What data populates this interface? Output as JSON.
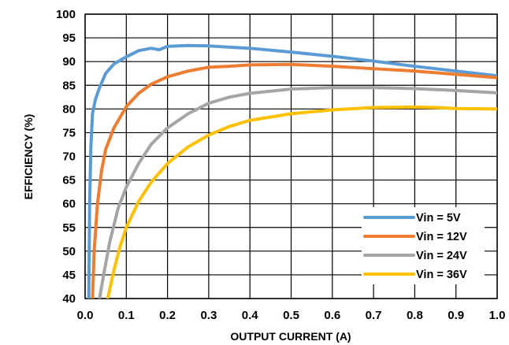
{
  "chart_data": {
    "type": "line",
    "title": "",
    "xlabel": "OUTPUT CURRENT (A)",
    "ylabel": "EFFICIENCY (%)",
    "xlim": [
      0,
      1.0
    ],
    "ylim": [
      40,
      100
    ],
    "xticks": [
      "0.0",
      "0.1",
      "0.2",
      "0.3",
      "0.4",
      "0.5",
      "0.6",
      "0.7",
      "0.8",
      "0.9",
      "1.0"
    ],
    "yticks": [
      "40",
      "45",
      "50",
      "55",
      "60",
      "65",
      "70",
      "75",
      "80",
      "85",
      "90",
      "95",
      "100"
    ],
    "grid": true,
    "legend_position": "bottom-right",
    "series": [
      {
        "name": "Vin = 5V",
        "color": "#5B9BD5",
        "points": [
          [
            0.009,
            40
          ],
          [
            0.011,
            60
          ],
          [
            0.014,
            72
          ],
          [
            0.018,
            79
          ],
          [
            0.025,
            82
          ],
          [
            0.035,
            84.5
          ],
          [
            0.05,
            87.5
          ],
          [
            0.07,
            89.5
          ],
          [
            0.1,
            91
          ],
          [
            0.13,
            92.3
          ],
          [
            0.16,
            92.8
          ],
          [
            0.18,
            92.5
          ],
          [
            0.2,
            93.2
          ],
          [
            0.25,
            93.4
          ],
          [
            0.3,
            93.3
          ],
          [
            0.4,
            92.8
          ],
          [
            0.5,
            92
          ],
          [
            0.6,
            91.1
          ],
          [
            0.7,
            90.1
          ],
          [
            0.8,
            89
          ],
          [
            0.9,
            88
          ],
          [
            1.0,
            87
          ]
        ]
      },
      {
        "name": "Vin = 12V",
        "color": "#ED7D31",
        "points": [
          [
            0.018,
            40
          ],
          [
            0.022,
            50
          ],
          [
            0.03,
            60
          ],
          [
            0.04,
            67
          ],
          [
            0.05,
            71.5
          ],
          [
            0.07,
            76
          ],
          [
            0.1,
            80.5
          ],
          [
            0.13,
            83.3
          ],
          [
            0.16,
            85.2
          ],
          [
            0.2,
            86.8
          ],
          [
            0.25,
            88
          ],
          [
            0.3,
            88.8
          ],
          [
            0.35,
            89
          ],
          [
            0.4,
            89.3
          ],
          [
            0.5,
            89.4
          ],
          [
            0.6,
            89
          ],
          [
            0.7,
            88.5
          ],
          [
            0.8,
            88
          ],
          [
            0.9,
            87.3
          ],
          [
            1.0,
            86.6
          ]
        ]
      },
      {
        "name": "Vin = 24V",
        "color": "#A5A5A5",
        "points": [
          [
            0.035,
            40
          ],
          [
            0.045,
            45
          ],
          [
            0.06,
            52
          ],
          [
            0.08,
            59
          ],
          [
            0.1,
            63.5
          ],
          [
            0.13,
            68.5
          ],
          [
            0.16,
            72.5
          ],
          [
            0.2,
            76
          ],
          [
            0.25,
            79
          ],
          [
            0.3,
            81.2
          ],
          [
            0.35,
            82.5
          ],
          [
            0.4,
            83.3
          ],
          [
            0.5,
            84.2
          ],
          [
            0.6,
            84.5
          ],
          [
            0.7,
            84.5
          ],
          [
            0.8,
            84.3
          ],
          [
            0.9,
            83.9
          ],
          [
            1.0,
            83.4
          ]
        ]
      },
      {
        "name": "Vin = 36V",
        "color": "#FFC000",
        "points": [
          [
            0.055,
            40
          ],
          [
            0.07,
            46
          ],
          [
            0.085,
            51
          ],
          [
            0.1,
            55
          ],
          [
            0.13,
            60.5
          ],
          [
            0.16,
            64.5
          ],
          [
            0.2,
            68.5
          ],
          [
            0.25,
            72
          ],
          [
            0.3,
            74.5
          ],
          [
            0.35,
            76.3
          ],
          [
            0.4,
            77.6
          ],
          [
            0.5,
            79
          ],
          [
            0.6,
            79.8
          ],
          [
            0.7,
            80.3
          ],
          [
            0.8,
            80.4
          ],
          [
            0.85,
            80.3
          ],
          [
            0.9,
            80.1
          ],
          [
            1.0,
            80
          ]
        ]
      }
    ]
  }
}
